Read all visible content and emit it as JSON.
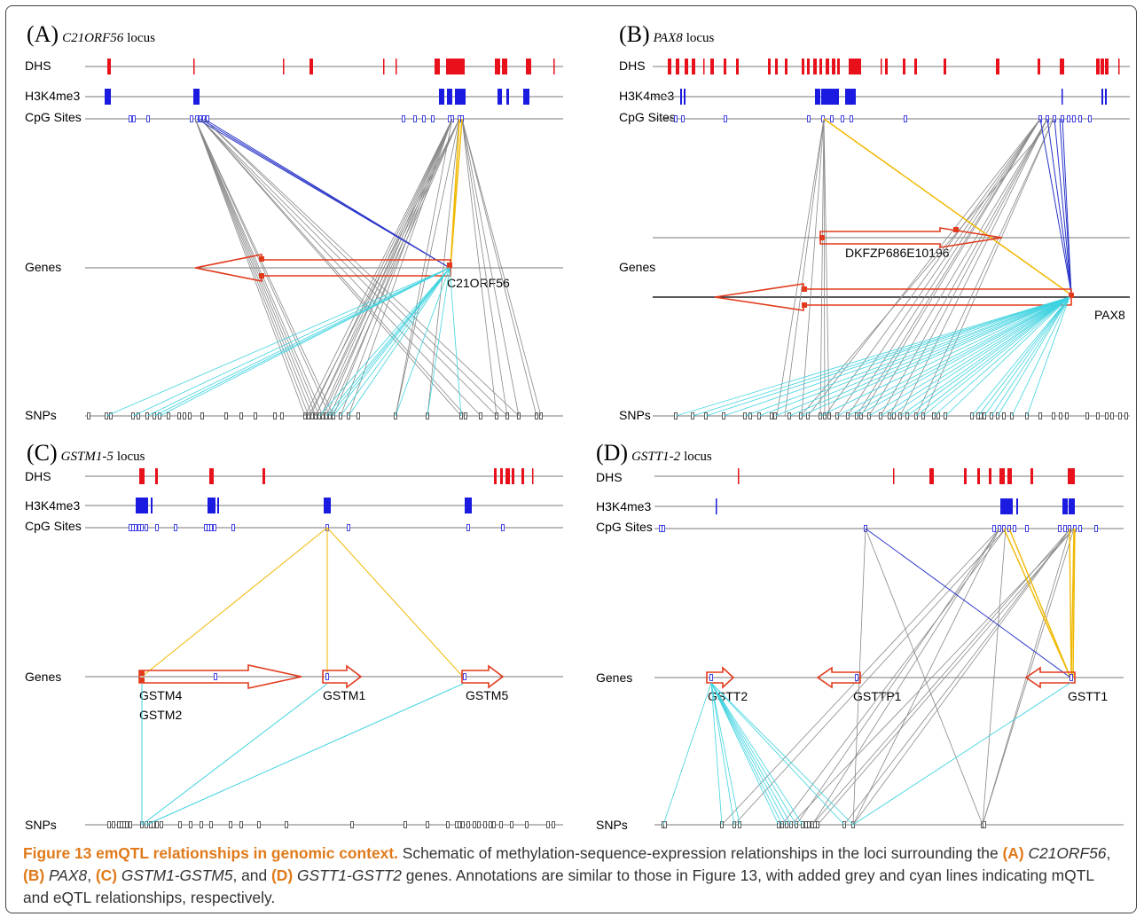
{
  "panels": [
    {
      "letter": "(A)",
      "gene": "C21ORF56",
      "locus": "locus",
      "tracks": [
        "DHS",
        "H3K4me3",
        "CpG Sites",
        "Genes",
        "SNPs"
      ],
      "gene_labels": [
        "C21ORF56"
      ]
    },
    {
      "letter": "(B)",
      "gene": "PAX8",
      "locus": "locus",
      "tracks": [
        "DHS",
        "H3K4me3",
        "CpG Sites",
        "Genes",
        "SNPs"
      ],
      "gene_labels": [
        "DKFZP686E10196",
        "PAX8"
      ]
    },
    {
      "letter": "(C)",
      "gene": "GSTM1-5",
      "locus": "locus",
      "tracks": [
        "DHS",
        "H3K4me3",
        "CpG Sites",
        "Genes",
        "SNPs"
      ],
      "gene_labels": [
        "GSTM4",
        "GSTM2",
        "GSTM1",
        "GSTM5"
      ]
    },
    {
      "letter": "(D)",
      "gene": "GSTT1-2",
      "locus": "locus",
      "tracks": [
        "DHS",
        "H3K4me3",
        "CpG Sites",
        "Genes",
        "SNPs"
      ],
      "gene_labels": [
        "GSTT2",
        "GSTTP1",
        "GSTT1"
      ]
    }
  ],
  "caption": {
    "title": "Figure 13 emQTL relationships in genomic context.",
    "t1": "Schematic of methylation-sequence-expression relationships in the loci surrounding the",
    "a_label": "(A)",
    "a_gene": "C21ORF56",
    "b_label": "(B)",
    "b_gene": "PAX8",
    "c_label": "(C)",
    "c_gene": "GSTM1-GSTM5",
    "and": "and",
    "d_label": "(D)",
    "d_gene": "GSTT1-GSTT2",
    "t2": "genes. Annotations are similar to those in Figure 13, with added grey and cyan lines indicating mQTL and eQTL relationships, respectively."
  },
  "colors": {
    "dhs": "#e8101a",
    "h3k4me3": "#1a1ae0",
    "cpg": "#1a1ae0",
    "gene_arrow": "#e23a1c",
    "mqtl": "#888888",
    "eqtl": "#3fd3e0",
    "meqtl": "#f0b800",
    "cpg_gene": "#2a35c8",
    "caption_bold": "#e07a1a"
  }
}
